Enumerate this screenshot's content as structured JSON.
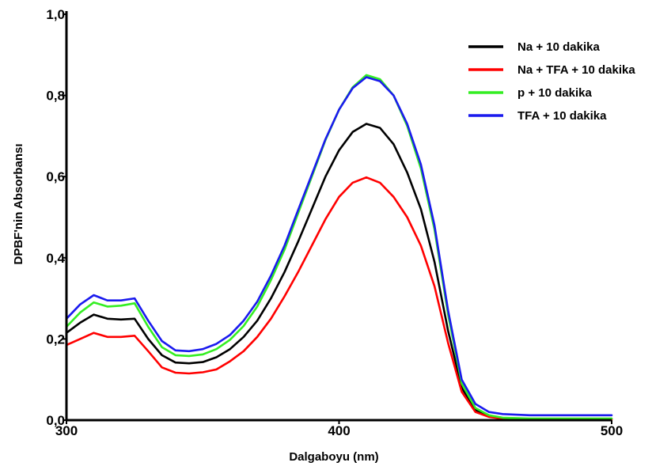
{
  "chart_data": {
    "type": "line",
    "title": "",
    "xlabel": "Dalgaboyu (nm)",
    "ylabel": "DPBF'nin Absorbansı",
    "xlim": [
      300,
      500
    ],
    "ylim": [
      0,
      1.0
    ],
    "x_ticks": [
      300,
      400,
      500
    ],
    "y_ticks": [
      0.0,
      0.2,
      0.4,
      0.6,
      0.8,
      1.0
    ],
    "x_tick_labels": [
      "300",
      "400",
      "500"
    ],
    "y_tick_labels": [
      "0,0",
      "0,2",
      "0,4",
      "0,6",
      "0,8",
      "1,0"
    ],
    "grid": false,
    "legend_position": "top-right",
    "x": [
      300,
      305,
      310,
      315,
      320,
      325,
      330,
      335,
      340,
      345,
      350,
      355,
      360,
      365,
      370,
      375,
      380,
      385,
      390,
      395,
      400,
      405,
      410,
      415,
      420,
      425,
      430,
      435,
      440,
      445,
      450,
      455,
      460,
      470,
      480,
      490,
      500
    ],
    "series": [
      {
        "name": "Na + 10 dakika",
        "color": "#000000",
        "values": [
          0.215,
          0.24,
          0.26,
          0.25,
          0.248,
          0.25,
          0.2,
          0.16,
          0.142,
          0.14,
          0.143,
          0.155,
          0.175,
          0.205,
          0.245,
          0.3,
          0.365,
          0.44,
          0.52,
          0.6,
          0.665,
          0.71,
          0.73,
          0.72,
          0.68,
          0.61,
          0.52,
          0.39,
          0.22,
          0.08,
          0.025,
          0.01,
          0.005,
          0.003,
          0.003,
          0.003,
          0.003
        ]
      },
      {
        "name": "Na + TFA + 10 dakika",
        "color": "#ff0000",
        "values": [
          0.185,
          0.2,
          0.215,
          0.205,
          0.205,
          0.208,
          0.17,
          0.13,
          0.117,
          0.115,
          0.118,
          0.125,
          0.145,
          0.17,
          0.205,
          0.25,
          0.305,
          0.365,
          0.43,
          0.495,
          0.55,
          0.585,
          0.598,
          0.585,
          0.55,
          0.5,
          0.43,
          0.33,
          0.19,
          0.07,
          0.02,
          0.008,
          0.004,
          0.002,
          0.002,
          0.002,
          0.002
        ]
      },
      {
        "name": "p + 10 dakika",
        "color": "#33ee22",
        "values": [
          0.23,
          0.265,
          0.29,
          0.28,
          0.282,
          0.288,
          0.23,
          0.18,
          0.16,
          0.158,
          0.162,
          0.175,
          0.198,
          0.232,
          0.28,
          0.345,
          0.42,
          0.51,
          0.6,
          0.69,
          0.765,
          0.82,
          0.85,
          0.84,
          0.8,
          0.725,
          0.62,
          0.47,
          0.26,
          0.09,
          0.03,
          0.012,
          0.006,
          0.004,
          0.004,
          0.004,
          0.004
        ]
      },
      {
        "name": "TFA + 10 dakika",
        "color": "#1a1aee",
        "values": [
          0.25,
          0.285,
          0.308,
          0.295,
          0.295,
          0.3,
          0.245,
          0.195,
          0.172,
          0.17,
          0.175,
          0.188,
          0.21,
          0.245,
          0.292,
          0.356,
          0.43,
          0.518,
          0.605,
          0.692,
          0.765,
          0.818,
          0.845,
          0.835,
          0.8,
          0.73,
          0.63,
          0.48,
          0.27,
          0.1,
          0.04,
          0.02,
          0.015,
          0.012,
          0.012,
          0.012,
          0.012
        ]
      }
    ]
  }
}
